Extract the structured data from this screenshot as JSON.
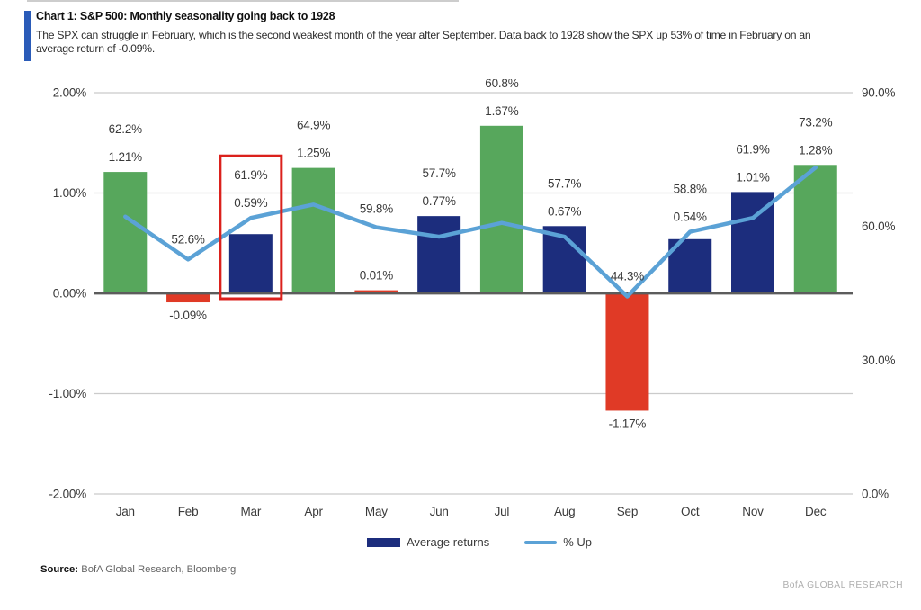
{
  "header": {
    "title": "Chart 1: S&P 500: Monthly seasonality going back to 1928",
    "subtitle_lines": [
      "The SPX can struggle in February, which is the second weakest month of the year after September. Data back to 1928 show the SPX up 53% of time in February on an",
      "average return of -0.09%."
    ],
    "accent_color": "#2a5bb8"
  },
  "chart_data": {
    "type": "bar",
    "subtype": "combo-bar-line",
    "categories": [
      "Jan",
      "Feb",
      "Mar",
      "Apr",
      "May",
      "Jun",
      "Jul",
      "Aug",
      "Sep",
      "Oct",
      "Nov",
      "Dec"
    ],
    "series": [
      {
        "name": "Average returns",
        "type": "bar",
        "axis": "left",
        "unit": "%",
        "values": [
          1.21,
          -0.09,
          0.59,
          1.25,
          0.01,
          0.77,
          1.67,
          0.67,
          -1.17,
          0.54,
          1.01,
          1.28
        ],
        "labels": [
          "1.21%",
          "-0.09%",
          "0.59%",
          "1.25%",
          "0.01%",
          "0.77%",
          "1.67%",
          "0.67%",
          "-1.17%",
          "0.54%",
          "1.01%",
          "1.28%"
        ],
        "bar_colors": [
          "green",
          "red",
          "navy",
          "green",
          "red",
          "navy",
          "green",
          "navy",
          "red",
          "navy",
          "navy",
          "green"
        ]
      },
      {
        "name": "% Up",
        "type": "line",
        "axis": "right",
        "unit": "%",
        "values": [
          62.2,
          52.6,
          61.9,
          64.9,
          59.8,
          57.7,
          60.8,
          57.7,
          44.3,
          58.8,
          61.9,
          73.2
        ],
        "labels": [
          "62.2%",
          "52.6%",
          "61.9%",
          "64.9%",
          "59.8%",
          "57.7%",
          "60.8%",
          "57.7%",
          "44.3%",
          "58.8%",
          "61.9%",
          "73.2%"
        ]
      }
    ],
    "axes": {
      "left": {
        "min": -2,
        "max": 2,
        "ticks": [
          {
            "label": "2.00%",
            "value": 2
          },
          {
            "label": "1.00%",
            "value": 1
          },
          {
            "label": "0.00%",
            "value": 0
          },
          {
            "label": "-1.00%",
            "value": -1
          },
          {
            "label": "-2.00%",
            "value": -2
          }
        ]
      },
      "right": {
        "min": 0,
        "max": 90,
        "ticks": [
          {
            "label": "90.0%",
            "value": 90
          },
          {
            "label": "60.0%",
            "value": 60
          },
          {
            "label": "30.0%",
            "value": 30
          },
          {
            "label": "0.0%",
            "value": 0
          }
        ]
      }
    },
    "grid": true,
    "legend_position": "bottom",
    "highlight": {
      "category": "Mar",
      "index": 2
    },
    "palette": {
      "green": "#57A75C",
      "navy": "#1C2D7D",
      "red": "#E03A26",
      "line": "#5BA2D6",
      "highlight": "#DB211C",
      "gridline": "#CBCBCB",
      "zero_line": "#5C5C5C",
      "label_text": "#3A3A3A"
    }
  },
  "footer": {
    "source_label": "Source:",
    "source_text": " BofA Global Research, Bloomberg",
    "brand": "BofA GLOBAL RESEARCH"
  }
}
